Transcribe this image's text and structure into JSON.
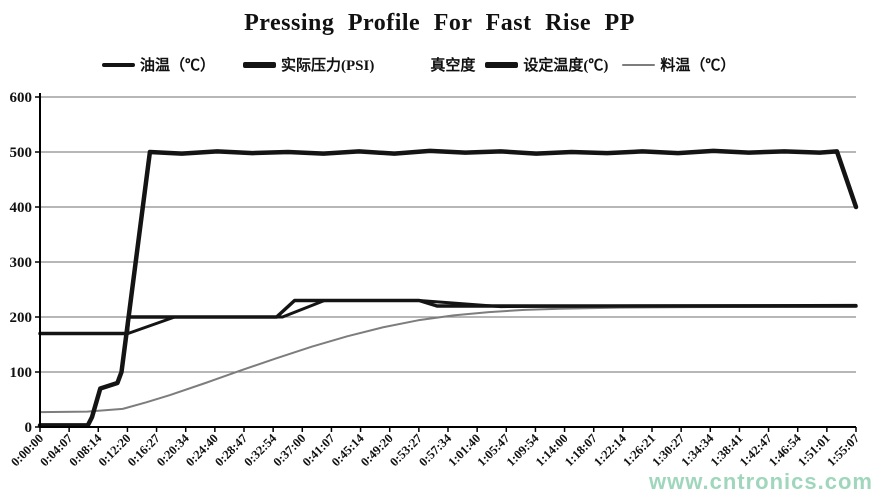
{
  "title": "Pressing Profile For Fast Rise PP",
  "watermark": {
    "text": "www.cntronics.com",
    "color": "#9fd6bc"
  },
  "colors": {
    "line_black": "#141414",
    "line_gray": "#7d7d7d",
    "grid": "#8c8c8c",
    "axis": "#000000",
    "background": "#ffffff"
  },
  "legend": [
    {
      "key": "oil-temp",
      "label": "油温（℃）",
      "swatch": "medium",
      "color": "#141414"
    },
    {
      "key": "pressure",
      "label": "实际压力(PSI)",
      "swatch": "thick",
      "color": "#141414"
    },
    {
      "key": "vacuum",
      "label": "真空度",
      "swatch": "none",
      "color": "transparent"
    },
    {
      "key": "set-temp",
      "label": "设定温度(℃)",
      "swatch": "thick",
      "color": "#141414"
    },
    {
      "key": "material-temp",
      "label": "料温（℃）",
      "swatch": "thin",
      "color": "#7d7d7d"
    }
  ],
  "chart_data": {
    "type": "line",
    "title": "Pressing Profile For Fast Rise PP",
    "xlabel": "",
    "ylabel": "",
    "ylim": [
      0,
      600
    ],
    "yticks": [
      0,
      100,
      200,
      300,
      400,
      500,
      600
    ],
    "grid": true,
    "legend_position": "top",
    "x_unit": "seconds (h:mm:ss elapsed time)",
    "x_total_seconds": 6907,
    "x_tick_labels": [
      "0:00:00",
      "0:04:07",
      "0:08:14",
      "0:12:20",
      "0:16:27",
      "0:20:34",
      "0:24:40",
      "0:28:47",
      "0:32:54",
      "0:37:00",
      "0:41:07",
      "0:45:14",
      "0:49:20",
      "0:53:27",
      "0:57:34",
      "1:01:40",
      "1:05:47",
      "1:09:54",
      "1:14:00",
      "1:18:07",
      "1:22:14",
      "1:26:21",
      "1:30:27",
      "1:34:34",
      "1:38:41",
      "1:42:47",
      "1:46:54",
      "1:51:01",
      "1:55:07"
    ],
    "series": [
      {
        "key": "material-temp",
        "name": "料温（℃）",
        "color": "#7d7d7d",
        "width": 2,
        "visible": true,
        "points": [
          [
            0,
            27
          ],
          [
            400,
            28
          ],
          [
            700,
            33
          ],
          [
            900,
            45
          ],
          [
            1100,
            58
          ],
          [
            1400,
            80
          ],
          [
            1700,
            103
          ],
          [
            2000,
            125
          ],
          [
            2300,
            146
          ],
          [
            2600,
            165
          ],
          [
            2900,
            181
          ],
          [
            3200,
            194
          ],
          [
            3500,
            203
          ],
          [
            3800,
            209
          ],
          [
            4100,
            213
          ],
          [
            4400,
            215
          ],
          [
            4900,
            217
          ],
          [
            5500,
            218
          ],
          [
            6907,
            219
          ]
        ]
      },
      {
        "key": "oil-temp",
        "name": "油温（℃）",
        "color": "#141414",
        "width": 3,
        "visible": true,
        "points": [
          [
            0,
            170
          ],
          [
            745,
            170
          ],
          [
            1140,
            200
          ],
          [
            2053,
            200
          ],
          [
            2408,
            230
          ],
          [
            3210,
            230
          ],
          [
            3900,
            219
          ],
          [
            4800,
            220
          ],
          [
            6907,
            221
          ]
        ]
      },
      {
        "key": "set-temp",
        "name": "设定温度(℃)",
        "color": "#141414",
        "width": 3.5,
        "visible": true,
        "points": [
          [
            0,
            170
          ],
          [
            740,
            170
          ],
          [
            750,
            200
          ],
          [
            2003,
            200
          ],
          [
            2155,
            230
          ],
          [
            3210,
            230
          ],
          [
            3360,
            220
          ],
          [
            6907,
            220
          ]
        ]
      },
      {
        "key": "vacuum",
        "name": "真空度",
        "color": "#141414",
        "width": 0,
        "visible": false,
        "points": []
      },
      {
        "key": "pressure",
        "name": "实际压力(PSI)",
        "color": "#141414",
        "width": 4.5,
        "visible": true,
        "points": [
          [
            0,
            3
          ],
          [
            405,
            3
          ],
          [
            440,
            18
          ],
          [
            510,
            70
          ],
          [
            655,
            80
          ],
          [
            690,
            100
          ],
          [
            930,
            500
          ],
          [
            1200,
            497
          ],
          [
            1500,
            501
          ],
          [
            1800,
            498
          ],
          [
            2100,
            500
          ],
          [
            2400,
            497
          ],
          [
            2700,
            501
          ],
          [
            3000,
            497
          ],
          [
            3300,
            502
          ],
          [
            3600,
            499
          ],
          [
            3900,
            501
          ],
          [
            4200,
            497
          ],
          [
            4500,
            500
          ],
          [
            4800,
            498
          ],
          [
            5100,
            501
          ],
          [
            5400,
            498
          ],
          [
            5700,
            502
          ],
          [
            6000,
            499
          ],
          [
            6300,
            501
          ],
          [
            6600,
            499
          ],
          [
            6745,
            501
          ],
          [
            6907,
            400
          ]
        ]
      }
    ]
  }
}
